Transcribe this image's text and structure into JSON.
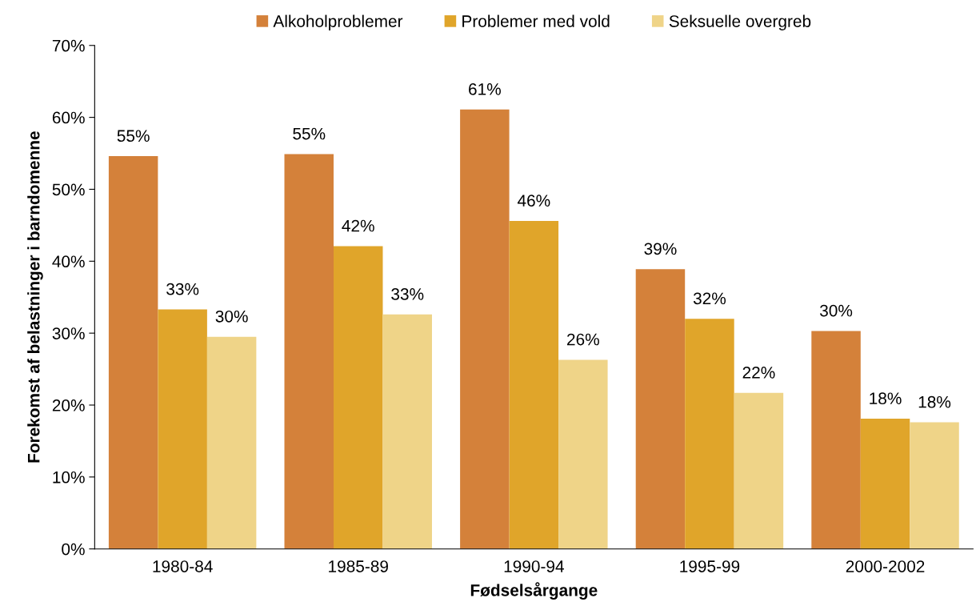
{
  "chart_data": {
    "type": "bar",
    "xlabel": "Fødselsårgange",
    "ylabel": "Forekomst af belastninger i barndomenne",
    "categories": [
      "1980-84",
      "1985-89",
      "1990-94",
      "1995-99",
      "2000-2002"
    ],
    "series": [
      {
        "name": "Alkoholproblemer",
        "color": "#d4813a",
        "values": [
          54.6,
          54.9,
          61.1,
          38.9,
          30.3
        ],
        "value_labels": [
          "55%",
          "55%",
          "61%",
          "39%",
          "30%"
        ]
      },
      {
        "name": "Problemer med vold",
        "color": "#e0a52a",
        "values": [
          33.3,
          42.1,
          45.6,
          32.0,
          18.1
        ],
        "value_labels": [
          "33%",
          "42%",
          "46%",
          "32%",
          "18%"
        ]
      },
      {
        "name": "Seksuelle overgreb",
        "color": "#efd488",
        "values": [
          29.5,
          32.6,
          26.3,
          21.7,
          17.6
        ],
        "value_labels": [
          "30%",
          "33%",
          "26%",
          "22%",
          "18%"
        ]
      }
    ],
    "ylim": [
      0,
      70
    ],
    "yticks": [
      {
        "value": 0,
        "label": "0%"
      },
      {
        "value": 10,
        "label": "10%"
      },
      {
        "value": 20,
        "label": "20%"
      },
      {
        "value": 30,
        "label": "30%"
      },
      {
        "value": 40,
        "label": "40%"
      },
      {
        "value": 50,
        "label": "50%"
      },
      {
        "value": 60,
        "label": "60%"
      },
      {
        "value": 70,
        "label": "70%"
      }
    ],
    "grid": false,
    "legend": "top"
  }
}
